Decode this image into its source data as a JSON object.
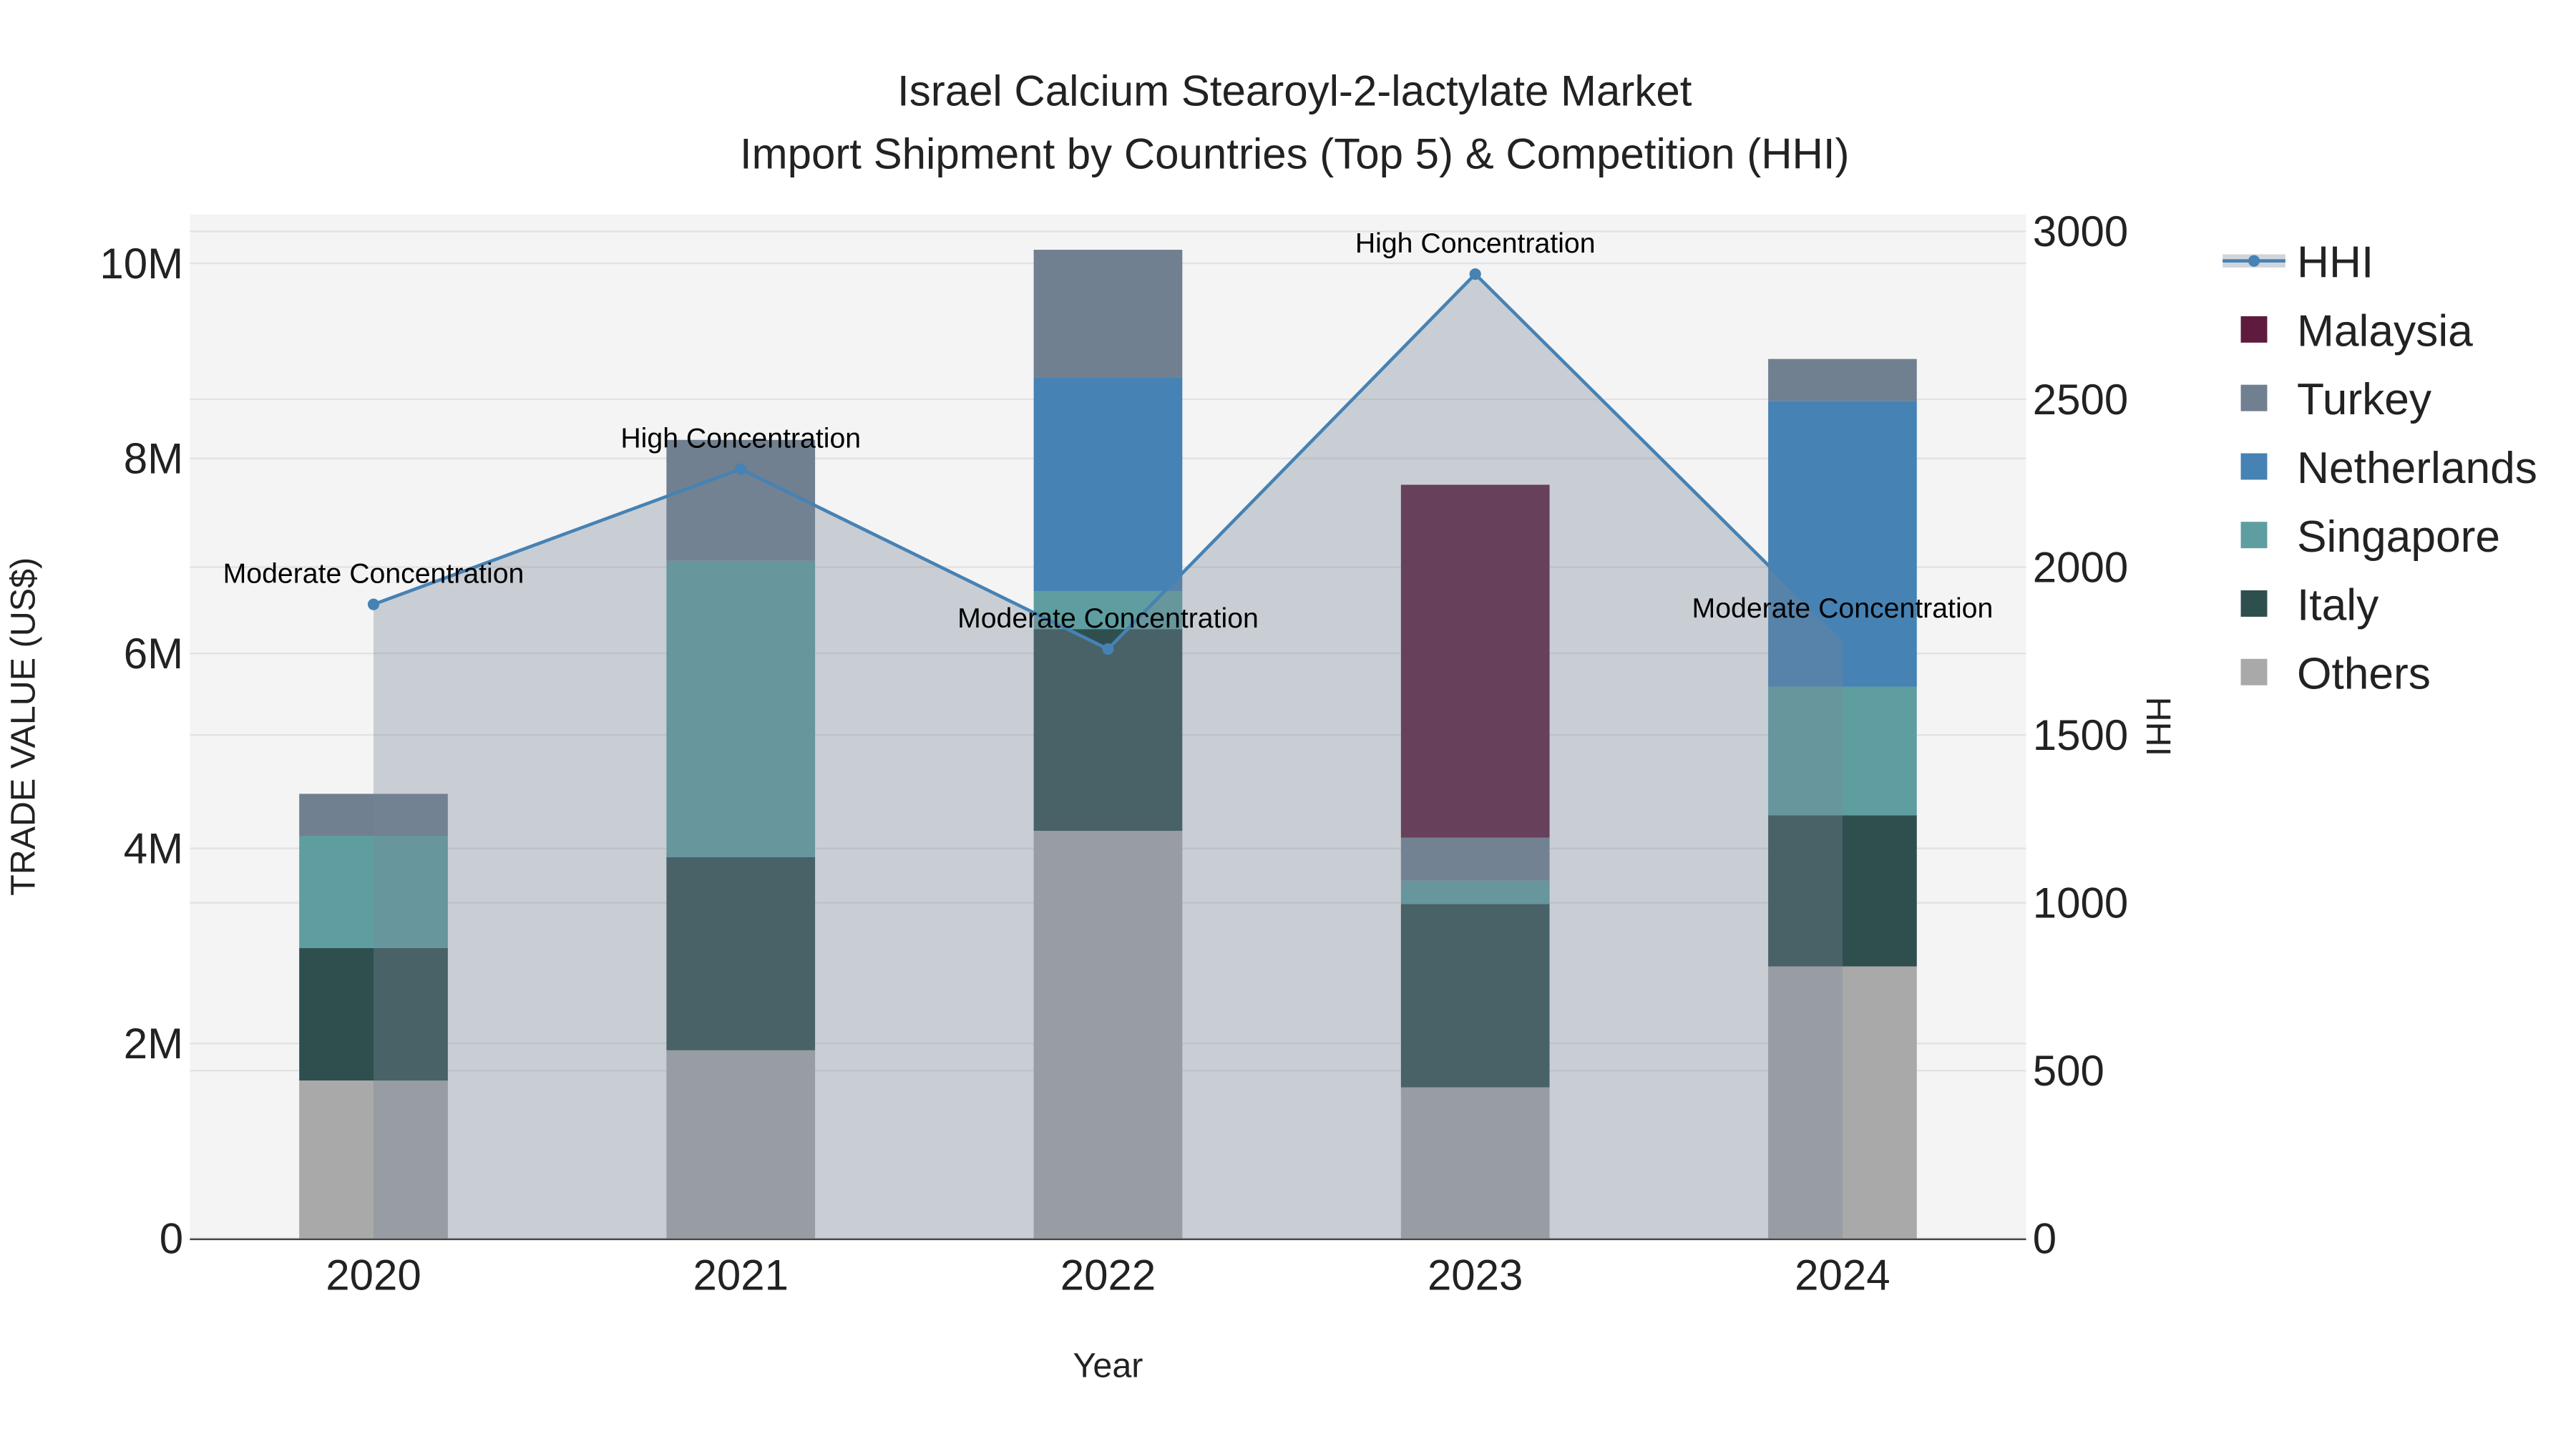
{
  "chart_data": {
    "type": "bar",
    "barmode": "stack",
    "title": "Israel Calcium Stearoyl-2-lactylate Market",
    "subtitle": "Import Shipment by Countries (Top 5) & Competition (HHI)",
    "xlabel": "Year",
    "ylabel": "TRADE VALUE (US$)",
    "y2label": "HHI",
    "categories": [
      "2020",
      "2021",
      "2022",
      "2023",
      "2024"
    ],
    "ylim": [
      0,
      10500000
    ],
    "y2lim": [
      0,
      3050
    ],
    "yticks": [
      0,
      2000000,
      4000000,
      6000000,
      8000000,
      10000000
    ],
    "ytick_labels": [
      "0",
      "2M",
      "4M",
      "6M",
      "8M",
      "10M"
    ],
    "y2ticks": [
      0,
      500,
      1000,
      1500,
      2000,
      2500,
      3000
    ],
    "y2tick_labels": [
      "0",
      "500",
      "1000",
      "1500",
      "2000",
      "2500",
      "3000"
    ],
    "grid": true,
    "legend_position": "right",
    "series": [
      {
        "name": "Others",
        "color": "#a9a9a9",
        "values": [
          1620000,
          1930000,
          4180000,
          1550000,
          2790000
        ]
      },
      {
        "name": "Italy",
        "color": "#2f4f4f",
        "values": [
          1360000,
          1980000,
          2070000,
          1880000,
          1550000
        ]
      },
      {
        "name": "Singapore",
        "color": "#5f9ea0",
        "values": [
          1150000,
          3040000,
          390000,
          240000,
          1320000
        ]
      },
      {
        "name": "Netherlands",
        "color": "#4682b4",
        "values": [
          0,
          0,
          2190000,
          0,
          2930000
        ]
      },
      {
        "name": "Turkey",
        "color": "#708090",
        "values": [
          430000,
          1240000,
          1310000,
          440000,
          430000
        ]
      },
      {
        "name": "Malaysia",
        "color": "#5f1b3d",
        "values": [
          0,
          0,
          0,
          3620000,
          0
        ]
      }
    ],
    "hhi": {
      "name": "HHI",
      "color": "#4682b4",
      "values": [
        1889,
        2292,
        1756,
        2873,
        1786
      ],
      "annotations": [
        "Moderate Concentration",
        "High Concentration",
        "Moderate Concentration",
        "High Concentration",
        "Moderate Concentration"
      ]
    },
    "legend_order": [
      "HHI",
      "Malaysia",
      "Turkey",
      "Netherlands",
      "Singapore",
      "Italy",
      "Others"
    ]
  }
}
